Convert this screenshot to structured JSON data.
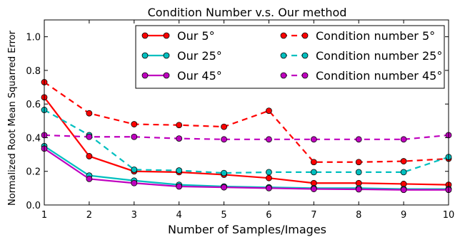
{
  "chart_data": {
    "type": "line",
    "title": "Condition Number v.s. Our method",
    "xlabel": "Number of Samples/Images",
    "ylabel": "Normalized Root Mean Squarred Error",
    "x": [
      1,
      2,
      3,
      4,
      5,
      6,
      7,
      8,
      9,
      10
    ],
    "xlim": [
      1,
      10
    ],
    "ylim": [
      0.0,
      1.1
    ],
    "xticks": [
      1,
      2,
      3,
      4,
      5,
      6,
      7,
      8,
      9,
      10
    ],
    "yticks": [
      "0.0",
      "0.2",
      "0.4",
      "0.6",
      "0.8",
      "1.0"
    ],
    "grid": false,
    "legend_position": "top-right",
    "series": [
      {
        "name": "Our 5°",
        "color": "#ff0000",
        "style": "solid",
        "values": [
          0.64,
          0.29,
          0.2,
          0.195,
          0.18,
          0.16,
          0.13,
          0.13,
          0.125,
          0.12
        ]
      },
      {
        "name": "Our 25°",
        "color": "#00bfbf",
        "style": "solid",
        "values": [
          0.35,
          0.175,
          0.145,
          0.12,
          0.11,
          0.105,
          0.1,
          0.1,
          0.095,
          0.095
        ]
      },
      {
        "name": "Our 45°",
        "color": "#bf00bf",
        "style": "solid",
        "values": [
          0.335,
          0.155,
          0.13,
          0.11,
          0.105,
          0.1,
          0.095,
          0.093,
          0.09,
          0.09
        ]
      },
      {
        "name": "Condition number 5°",
        "color": "#ff0000",
        "style": "dashed",
        "values": [
          0.73,
          0.545,
          0.48,
          0.475,
          0.465,
          0.56,
          0.255,
          0.255,
          0.26,
          0.275
        ]
      },
      {
        "name": "Condition number 25°",
        "color": "#00bfbf",
        "style": "dashed",
        "values": [
          0.565,
          0.415,
          0.21,
          0.205,
          0.19,
          0.195,
          0.195,
          0.195,
          0.195,
          0.285
        ]
      },
      {
        "name": "Condition number 45°",
        "color": "#bf00bf",
        "style": "dashed",
        "values": [
          0.415,
          0.405,
          0.405,
          0.395,
          0.39,
          0.39,
          0.39,
          0.39,
          0.39,
          0.415
        ]
      }
    ]
  }
}
